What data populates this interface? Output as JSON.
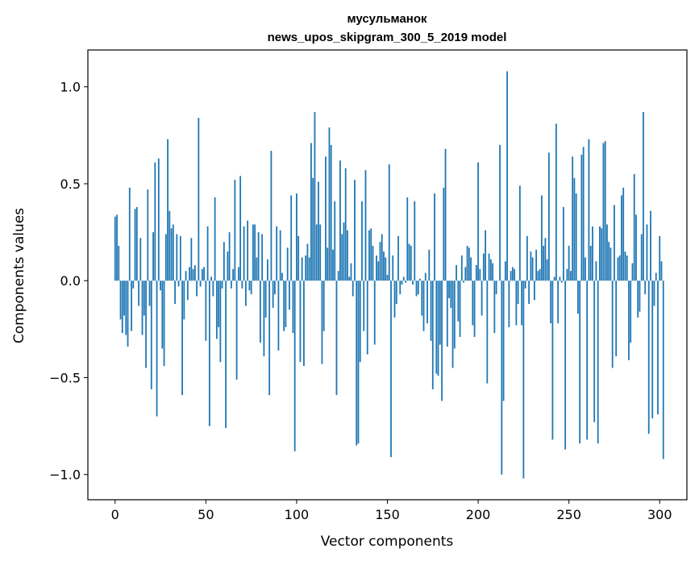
{
  "chart_data": {
    "type": "bar",
    "title_line1": "мусульманок",
    "title_line2": "news_upos_skipgram_300_5_2019 model",
    "xlabel": "Vector components",
    "ylabel": "Components values",
    "xlim": [
      -15,
      315
    ],
    "ylim": [
      -1.13,
      1.19
    ],
    "xticks": [
      0,
      50,
      100,
      150,
      200,
      250,
      300
    ],
    "xtick_labels": [
      "0",
      "50",
      "100",
      "150",
      "200",
      "250",
      "300"
    ],
    "yticks": [
      -1.0,
      -0.5,
      0.0,
      0.5,
      1.0
    ],
    "ytick_labels": [
      "−1.0",
      "−0.5",
      "0.0",
      "0.5",
      "1.0"
    ],
    "bar_color": "#1f77b4",
    "values": [
      0.33,
      0.34,
      0.18,
      -0.2,
      -0.27,
      -0.18,
      -0.28,
      -0.34,
      0.48,
      -0.26,
      -0.04,
      0.37,
      0.38,
      -0.13,
      0.22,
      -0.28,
      -0.18,
      -0.45,
      0.47,
      -0.13,
      -0.56,
      0.25,
      0.61,
      -0.7,
      0.63,
      -0.05,
      -0.35,
      -0.44,
      0.24,
      0.73,
      0.36,
      0.27,
      0.29,
      -0.12,
      0.24,
      -0.03,
      0.23,
      -0.59,
      -0.2,
      0.05,
      -0.1,
      0.07,
      0.22,
      0.06,
      0.08,
      -0.08,
      0.84,
      -0.03,
      0.06,
      0.07,
      -0.31,
      0.28,
      -0.75,
      0.02,
      -0.08,
      0.43,
      -0.3,
      -0.24,
      -0.42,
      -0.04,
      0.2,
      -0.76,
      0.15,
      0.25,
      -0.04,
      0.06,
      0.52,
      -0.51,
      0.07,
      0.54,
      -0.04,
      0.28,
      -0.13,
      0.31,
      -0.05,
      -0.07,
      0.29,
      0.29,
      0.12,
      0.25,
      -0.32,
      0.24,
      -0.39,
      -0.19,
      0.11,
      -0.59,
      0.67,
      -0.14,
      -0.07,
      0.28,
      -0.36,
      0.26,
      0.04,
      -0.26,
      -0.24,
      0.17,
      -0.15,
      0.44,
      -0.27,
      -0.88,
      0.45,
      0.23,
      -0.42,
      0.12,
      -0.44,
      0.13,
      0.19,
      0.12,
      0.71,
      0.53,
      0.87,
      0.29,
      0.51,
      0.29,
      -0.43,
      -0.26,
      0.64,
      0.17,
      0.79,
      0.7,
      0.16,
      0.41,
      -0.59,
      0.05,
      0.62,
      0.24,
      0.3,
      0.58,
      0.26,
      0.02,
      0.09,
      -0.08,
      0.52,
      -0.85,
      -0.84,
      -0.42,
      0.41,
      -0.26,
      0.57,
      -0.38,
      0.26,
      0.27,
      0.18,
      -0.33,
      0.13,
      0.1,
      0.2,
      0.24,
      0.15,
      0.12,
      0.03,
      0.6,
      -0.91,
      0.13,
      -0.19,
      -0.12,
      0.23,
      -0.07,
      -0.02,
      0.02,
      -0.01,
      0.43,
      0.19,
      0.18,
      -0.02,
      0.41,
      -0.08,
      -0.07,
      0.01,
      -0.18,
      -0.26,
      0.04,
      -0.22,
      0.16,
      -0.31,
      -0.56,
      0.45,
      -0.48,
      -0.49,
      -0.33,
      -0.62,
      0.48,
      0.68,
      -0.34,
      -0.09,
      -0.14,
      -0.45,
      -0.35,
      0.08,
      -0.21,
      -0.29,
      0.13,
      -0.01,
      0.07,
      0.18,
      0.17,
      0.12,
      -0.23,
      -0.29,
      0.08,
      0.61,
      0.06,
      -0.18,
      0.14,
      0.26,
      -0.53,
      0.14,
      0.11,
      0.09,
      -0.27,
      -0.07,
      0.0,
      0.7,
      -1.0,
      -0.62,
      0.1,
      1.08,
      -0.24,
      0.05,
      0.07,
      0.06,
      -0.23,
      -0.12,
      0.49,
      -0.23,
      -1.02,
      -0.04,
      0.23,
      -0.12,
      0.15,
      0.12,
      -0.1,
      0.16,
      0.05,
      0.06,
      0.44,
      0.18,
      0.22,
      0.11,
      0.66,
      -0.22,
      -0.82,
      0.02,
      0.81,
      -0.22,
      0.02,
      -0.01,
      0.38,
      -0.87,
      0.06,
      0.18,
      0.05,
      0.64,
      0.53,
      0.45,
      -0.17,
      -0.84,
      0.65,
      0.69,
      0.12,
      -0.82,
      0.73,
      0.18,
      0.28,
      -0.73,
      0.1,
      -0.84,
      0.28,
      0.27,
      0.71,
      0.72,
      0.29,
      0.2,
      0.17,
      -0.45,
      0.39,
      -0.39,
      0.12,
      0.13,
      0.44,
      0.48,
      0.15,
      0.13,
      -0.41,
      -0.32,
      0.09,
      0.55,
      0.34,
      -0.19,
      -0.16,
      0.24,
      0.87,
      -0.07,
      0.29,
      -0.79,
      0.36,
      -0.71,
      -0.13,
      0.04,
      -0.69,
      0.23,
      0.1,
      -0.92
    ]
  }
}
